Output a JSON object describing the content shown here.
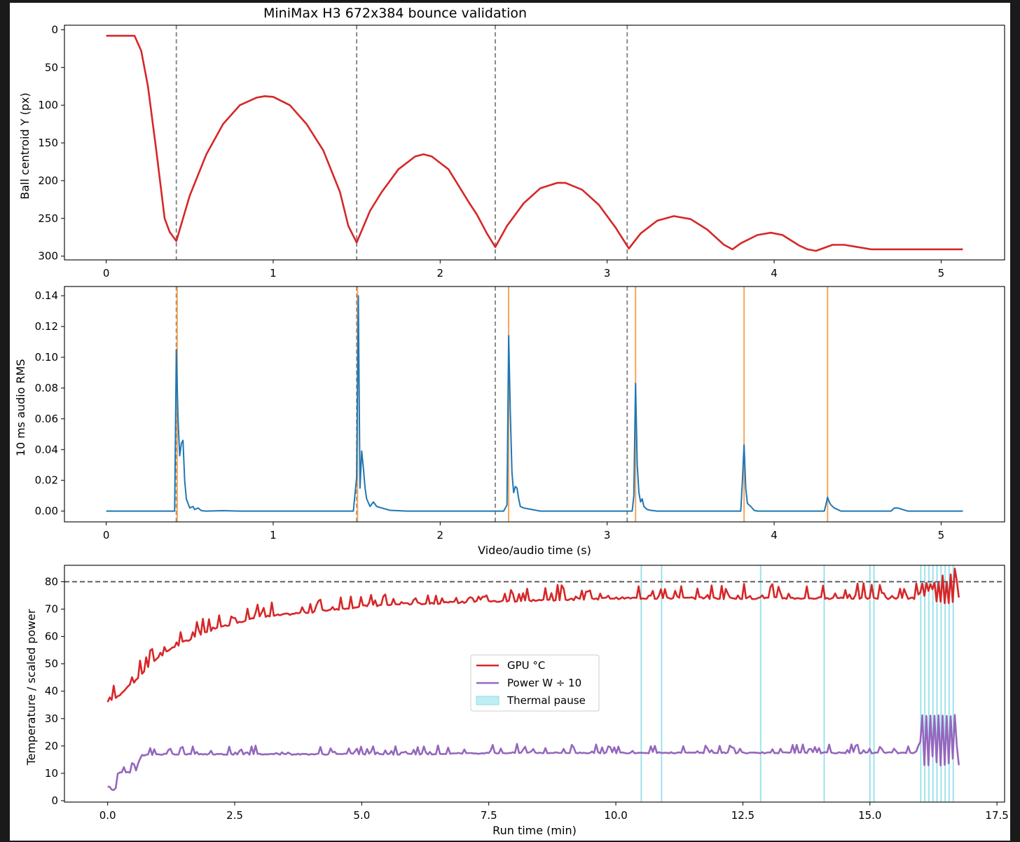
{
  "title": "MiniMax H3 672x384 bounce validation",
  "chart_data": [
    {
      "type": "line",
      "ylabel": "Ball centroid Y (px)",
      "xlim": [
        -0.25,
        5.38
      ],
      "ylim": [
        305,
        -6
      ],
      "y_inverted": true,
      "xticks": [
        0,
        1,
        2,
        3,
        4,
        5
      ],
      "yticks": [
        0,
        50,
        100,
        150,
        200,
        250,
        300
      ],
      "series": [
        {
          "color": "#d62728",
          "x": [
            0,
            0.17,
            0.21,
            0.25,
            0.3,
            0.35,
            0.38,
            0.42,
            0.5,
            0.6,
            0.7,
            0.8,
            0.9,
            0.95,
            1.0,
            1.1,
            1.2,
            1.3,
            1.4,
            1.45,
            1.5,
            1.58,
            1.65,
            1.75,
            1.85,
            1.9,
            1.95,
            2.05,
            2.12,
            2.17,
            2.22,
            2.28,
            2.33,
            2.4,
            2.5,
            2.6,
            2.7,
            2.75,
            2.85,
            2.95,
            3.05,
            3.13,
            3.2,
            3.3,
            3.4,
            3.5,
            3.6,
            3.7,
            3.75,
            3.8,
            3.9,
            3.98,
            4.05,
            4.15,
            4.2,
            4.25,
            4.35,
            4.42,
            4.5,
            4.58,
            5.13
          ],
          "y": [
            8,
            8,
            28,
            75,
            160,
            250,
            268,
            280,
            220,
            165,
            125,
            100,
            90,
            88,
            89,
            100,
            125,
            160,
            215,
            260,
            282,
            240,
            215,
            185,
            168,
            165,
            168,
            185,
            210,
            228,
            245,
            270,
            288,
            260,
            230,
            210,
            203,
            203,
            212,
            232,
            262,
            290,
            270,
            253,
            247,
            251,
            265,
            285,
            291,
            283,
            272,
            269,
            272,
            286,
            291,
            293,
            285,
            285,
            288,
            291,
            291
          ]
        }
      ],
      "vlines": [
        {
          "x": 0.42,
          "color": "#808080",
          "style": "dashed"
        },
        {
          "x": 1.5,
          "color": "#808080",
          "style": "dashed"
        },
        {
          "x": 2.33,
          "color": "#808080",
          "style": "dashed"
        },
        {
          "x": 3.12,
          "color": "#808080",
          "style": "dashed"
        }
      ]
    },
    {
      "type": "line",
      "ylabel": "10 ms audio RMS",
      "xlabel": "Video/audio time (s)",
      "xlim": [
        -0.25,
        5.38
      ],
      "ylim": [
        -0.007,
        0.146
      ],
      "xticks": [
        0,
        1,
        2,
        3,
        4,
        5
      ],
      "yticks": [
        "0.00",
        "0.02",
        "0.04",
        "0.06",
        "0.08",
        "0.10",
        "0.12",
        "0.14"
      ],
      "series": [
        {
          "color": "#1f77b4",
          "x": [
            0,
            0.4,
            0.41,
            0.42,
            0.43,
            0.44,
            0.45,
            0.46,
            0.47,
            0.48,
            0.49,
            0.5,
            0.52,
            0.53,
            0.55,
            0.57,
            0.6,
            0.7,
            0.8,
            1.0,
            1.2,
            1.4,
            1.48,
            1.5,
            1.51,
            1.515,
            1.52,
            1.53,
            1.54,
            1.55,
            1.56,
            1.58,
            1.6,
            1.62,
            1.65,
            1.7,
            1.8,
            2.0,
            2.2,
            2.38,
            2.4,
            2.41,
            2.42,
            2.43,
            2.44,
            2.45,
            2.46,
            2.47,
            2.48,
            2.5,
            2.6,
            2.8,
            3.0,
            3.15,
            3.16,
            3.17,
            3.18,
            3.19,
            3.2,
            3.21,
            3.22,
            3.24,
            3.26,
            3.3,
            3.5,
            3.8,
            3.81,
            3.82,
            3.83,
            3.84,
            3.85,
            3.86,
            3.88,
            3.9,
            4.0,
            4.3,
            4.31,
            4.32,
            4.33,
            4.34,
            4.36,
            4.4,
            4.7,
            4.72,
            4.74,
            4.8,
            5.13
          ],
          "y": [
            0,
            0,
            0,
            0.105,
            0.06,
            0.036,
            0.044,
            0.046,
            0.02,
            0.008,
            0.005,
            0.002,
            0.003,
            0.001,
            0.002,
            0.0003,
            0,
            0.0003,
            0,
            0,
            0,
            0,
            0,
            0.022,
            0.14,
            0.075,
            0.015,
            0.039,
            0.028,
            0.015,
            0.008,
            0.003,
            0.006,
            0.003,
            0.002,
            0.0005,
            0,
            0,
            0,
            0,
            0.004,
            0.114,
            0.065,
            0.025,
            0.012,
            0.016,
            0.015,
            0.008,
            0.003,
            0.002,
            0,
            0,
            0,
            0,
            0.01,
            0.083,
            0.03,
            0.012,
            0.006,
            0.008,
            0.003,
            0.001,
            0.0005,
            0,
            0,
            0,
            0.02,
            0.043,
            0.015,
            0.005,
            0.004,
            0.003,
            0.0005,
            0,
            0,
            0,
            0.004,
            0.009,
            0.006,
            0.004,
            0.002,
            0,
            0,
            0.002,
            0.002,
            0,
            0
          ]
        }
      ],
      "vlines": [
        {
          "x": 0.42,
          "color": "#808080",
          "style": "dashed"
        },
        {
          "x": 1.5,
          "color": "#808080",
          "style": "dashed"
        },
        {
          "x": 2.33,
          "color": "#808080",
          "style": "dashed"
        },
        {
          "x": 3.12,
          "color": "#808080",
          "style": "dashed"
        },
        {
          "x": 0.425,
          "color": "#f5a55a",
          "style": "solid"
        },
        {
          "x": 1.505,
          "color": "#f5a55a",
          "style": "solid"
        },
        {
          "x": 2.41,
          "color": "#f5a55a",
          "style": "solid"
        },
        {
          "x": 3.17,
          "color": "#f5a55a",
          "style": "solid"
        },
        {
          "x": 3.82,
          "color": "#f5a55a",
          "style": "solid"
        },
        {
          "x": 4.32,
          "color": "#f5a55a",
          "style": "solid"
        }
      ]
    },
    {
      "type": "line",
      "ylabel": "Temperature / scaled power",
      "xlabel": "Run time (min)",
      "xlim": [
        -0.85,
        17.65
      ],
      "ylim": [
        -0.5,
        86
      ],
      "xticks": [
        "0.0",
        "2.5",
        "5.0",
        "7.5",
        "10.0",
        "12.5",
        "15.0",
        "17.5"
      ],
      "yticks": [
        0,
        10,
        20,
        30,
        40,
        50,
        60,
        70,
        80
      ],
      "hline": {
        "y": 80,
        "color": "#555555",
        "style": "dashed"
      },
      "thermal_pauses": [
        10.5,
        10.9,
        12.85,
        14.1,
        15.0,
        15.08,
        16.0,
        16.08,
        16.16,
        16.24,
        16.32,
        16.4,
        16.48,
        16.56,
        16.64
      ],
      "series": [
        {
          "name": "GPU °C",
          "color": "#d62728",
          "jitter": 2.5,
          "x": [
            0,
            0.1,
            0.2,
            0.3,
            0.5,
            0.7,
            0.9,
            1.2,
            1.5,
            2.0,
            2.5,
            3.0,
            3.5,
            4.0,
            4.5,
            5.0,
            6.0,
            7.0,
            8.0,
            9.0,
            10.0,
            10.5,
            11.0,
            12.0,
            13.0,
            14.0,
            15.0,
            15.9,
            16.0,
            16.7,
            16.75
          ],
          "y": [
            36,
            37,
            38,
            40,
            43,
            47,
            51,
            55,
            58,
            62,
            65,
            67,
            68,
            69,
            70,
            71,
            72,
            72.5,
            73,
            73.5,
            74,
            74,
            74,
            74,
            74,
            74,
            74,
            74,
            76,
            76,
            73
          ]
        },
        {
          "name": "Power W ÷ 10",
          "color": "#9467bd",
          "jitter": 1.5,
          "x": [
            0,
            0.05,
            0.1,
            0.15,
            0.2,
            0.3,
            0.45,
            0.55,
            0.6,
            0.65,
            1.0,
            2.0,
            4.0,
            6.0,
            8.0,
            10.0,
            12.0,
            14.0,
            15.9,
            15.95,
            16.0,
            16.7,
            16.75
          ],
          "y": [
            3.5,
            4,
            4.5,
            3.5,
            10,
            10.3,
            10.5,
            11,
            11,
            16.5,
            17,
            17,
            17,
            17,
            17.5,
            17.5,
            17.5,
            17.5,
            17.5,
            20,
            22,
            22,
            12
          ]
        }
      ],
      "legend": {
        "position": "center",
        "entries": [
          "GPU °C",
          "Power W ÷ 10",
          "Thermal pause"
        ]
      }
    }
  ]
}
